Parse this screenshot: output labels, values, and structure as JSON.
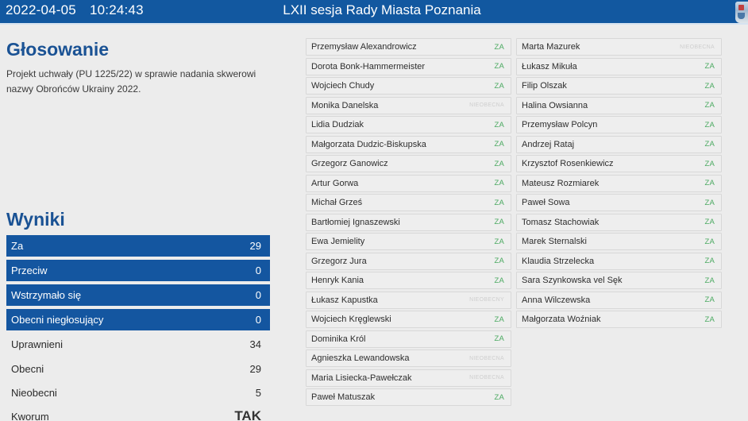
{
  "header": {
    "date": "2022-04-05",
    "time": "10:24:43",
    "title": "LXII sesja Rady Miasta Poznania",
    "logo_icon": "city-crest-icon",
    "bg_color": "#1258a0"
  },
  "voting": {
    "heading": "Głosowanie",
    "description": "Projekt uchwały (PU 1225/22) w sprawie nadania skwerowi nazwy Obrońców Ukrainy 2022."
  },
  "results": {
    "heading": "Wyniki",
    "bars": [
      {
        "label": "Za",
        "value": "29"
      },
      {
        "label": "Przeciw",
        "value": "0"
      },
      {
        "label": "Wstrzymało się",
        "value": "0"
      },
      {
        "label": "Obecni niegłosujący",
        "value": "0"
      }
    ],
    "stats": [
      {
        "label": "Uprawnieni",
        "value": "34"
      },
      {
        "label": "Obecni",
        "value": "29"
      },
      {
        "label": "Nieobecni",
        "value": "5"
      },
      {
        "label": "Kworum",
        "value": "TAK"
      }
    ],
    "bar_color": "#1456a0"
  },
  "members": {
    "column1": [
      {
        "name": "Przemysław Alexandrowicz",
        "vote": "ZA",
        "type": "za"
      },
      {
        "name": "Dorota Bonk-Hammermeister",
        "vote": "ZA",
        "type": "za"
      },
      {
        "name": "Wojciech Chudy",
        "vote": "ZA",
        "type": "za"
      },
      {
        "name": "Monika Danelska",
        "vote": "NIEOBECNA",
        "type": "absent"
      },
      {
        "name": "Lidia Dudziak",
        "vote": "ZA",
        "type": "za"
      },
      {
        "name": "Małgorzata Dudzic-Biskupska",
        "vote": "ZA",
        "type": "za"
      },
      {
        "name": "Grzegorz Ganowicz",
        "vote": "ZA",
        "type": "za"
      },
      {
        "name": "Artur Gorwa",
        "vote": "ZA",
        "type": "za"
      },
      {
        "name": "Michał Grześ",
        "vote": "ZA",
        "type": "za"
      },
      {
        "name": "Bartłomiej Ignaszewski",
        "vote": "ZA",
        "type": "za"
      },
      {
        "name": "Ewa Jemielity",
        "vote": "ZA",
        "type": "za"
      },
      {
        "name": "Grzegorz Jura",
        "vote": "ZA",
        "type": "za"
      },
      {
        "name": "Henryk Kania",
        "vote": "ZA",
        "type": "za"
      },
      {
        "name": "Łukasz Kapustka",
        "vote": "NIEOBECNY",
        "type": "absent"
      },
      {
        "name": "Wojciech Kręglewski",
        "vote": "ZA",
        "type": "za"
      },
      {
        "name": "Dominika Król",
        "vote": "ZA",
        "type": "za"
      },
      {
        "name": "Agnieszka Lewandowska",
        "vote": "NIEOBECNA",
        "type": "absent"
      },
      {
        "name": "Maria Lisiecka-Pawełczak",
        "vote": "NIEOBECNA",
        "type": "absent"
      },
      {
        "name": "Paweł Matuszak",
        "vote": "ZA",
        "type": "za"
      }
    ],
    "column2": [
      {
        "name": "Marta Mazurek",
        "vote": "NIEOBECNA",
        "type": "absent"
      },
      {
        "name": "Łukasz Mikuła",
        "vote": "ZA",
        "type": "za"
      },
      {
        "name": "Filip Olszak",
        "vote": "ZA",
        "type": "za"
      },
      {
        "name": "Halina Owsianna",
        "vote": "ZA",
        "type": "za"
      },
      {
        "name": "Przemysław Polcyn",
        "vote": "ZA",
        "type": "za"
      },
      {
        "name": "Andrzej Rataj",
        "vote": "ZA",
        "type": "za"
      },
      {
        "name": "Krzysztof Rosenkiewicz",
        "vote": "ZA",
        "type": "za"
      },
      {
        "name": "Mateusz Rozmiarek",
        "vote": "ZA",
        "type": "za"
      },
      {
        "name": "Paweł Sowa",
        "vote": "ZA",
        "type": "za"
      },
      {
        "name": "Tomasz Stachowiak",
        "vote": "ZA",
        "type": "za"
      },
      {
        "name": "Marek Sternalski",
        "vote": "ZA",
        "type": "za"
      },
      {
        "name": "Klaudia Strzelecka",
        "vote": "ZA",
        "type": "za"
      },
      {
        "name": "Sara Szynkowska vel Sęk",
        "vote": "ZA",
        "type": "za"
      },
      {
        "name": "Anna Wilczewska",
        "vote": "ZA",
        "type": "za"
      },
      {
        "name": "Małgorzata Woźniak",
        "vote": "ZA",
        "type": "za"
      }
    ],
    "vote_colors": {
      "za": "#4caa62",
      "absent": "#cfcfcf"
    }
  }
}
